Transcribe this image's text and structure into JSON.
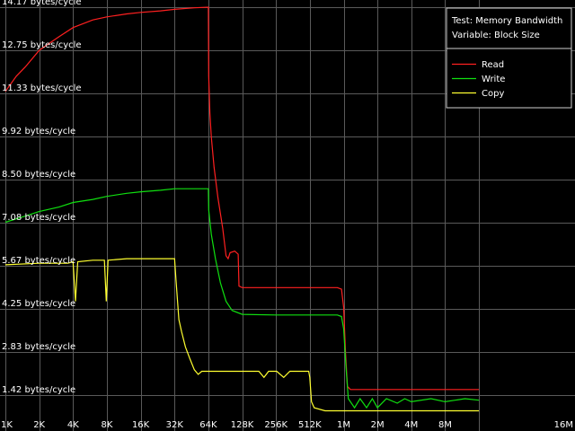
{
  "chart_data": {
    "type": "line",
    "title": "",
    "info": {
      "test_label": "Test: Memory Bandwidth",
      "variable_label": "Variable: Block Size"
    },
    "x_ticks": [
      "1K",
      "2K",
      "4K",
      "8K",
      "16K",
      "32K",
      "64K",
      "128K",
      "256K",
      "512K",
      "1M",
      "2M",
      "4M",
      "8M",
      "16M"
    ],
    "x_scale": "log2",
    "y_ticks": [
      "14.17 bytes/cycle",
      "12.75 bytes/cycle",
      "11.33 bytes/cycle",
      "9.92 bytes/cycle",
      "8.50 bytes/cycle",
      "7.08 bytes/cycle",
      "5.67 bytes/cycle",
      "4.25 bytes/cycle",
      "2.83 bytes/cycle",
      "1.42 bytes/cycle"
    ],
    "ylim": [
      0,
      14.17
    ],
    "grid": true,
    "legend_placement": "top-right",
    "colors": {
      "background": "#000000",
      "grid": "#5a5a5a",
      "text": "#ffffff"
    },
    "series": [
      {
        "name": "Read",
        "color": "#ff2020",
        "points": [
          [
            "1K",
            11.4
          ],
          [
            "1.25K",
            11.9
          ],
          [
            "1.5K",
            12.2
          ],
          [
            "2K",
            12.75
          ],
          [
            "2.5K",
            13.0
          ],
          [
            "3K",
            13.2
          ],
          [
            "4K",
            13.5
          ],
          [
            "6K",
            13.75
          ],
          [
            "8K",
            13.85
          ],
          [
            "12K",
            13.95
          ],
          [
            "16K",
            14.0
          ],
          [
            "24K",
            14.05
          ],
          [
            "32K",
            14.1
          ],
          [
            "48K",
            14.15
          ],
          [
            "64K",
            14.17
          ],
          [
            "64.5K",
            11.9
          ],
          [
            "66K",
            10.7
          ],
          [
            "68K",
            9.9
          ],
          [
            "72K",
            8.9
          ],
          [
            "78K",
            7.9
          ],
          [
            "86K",
            6.9
          ],
          [
            "92K",
            6.0
          ],
          [
            "96K",
            5.9
          ],
          [
            "100K",
            6.1
          ],
          [
            "110K",
            6.15
          ],
          [
            "118K",
            6.05
          ],
          [
            "120K",
            5.0
          ],
          [
            "128K",
            4.95
          ],
          [
            "256K",
            4.95
          ],
          [
            "512K",
            4.95
          ],
          [
            "900K",
            4.95
          ],
          [
            "980K",
            4.9
          ],
          [
            "1M",
            4.3
          ],
          [
            "1.04M",
            2.8
          ],
          [
            "1.08M",
            1.7
          ],
          [
            "1.15M",
            1.6
          ],
          [
            "2M",
            1.6
          ],
          [
            "4M",
            1.6
          ],
          [
            "8M",
            1.6
          ],
          [
            "16M",
            1.6
          ]
        ]
      },
      {
        "name": "Write",
        "color": "#10e010",
        "points": [
          [
            "1K",
            7.1
          ],
          [
            "1.5K",
            7.3
          ],
          [
            "2K",
            7.45
          ],
          [
            "3K",
            7.6
          ],
          [
            "4K",
            7.75
          ],
          [
            "6K",
            7.85
          ],
          [
            "8K",
            7.95
          ],
          [
            "12K",
            8.05
          ],
          [
            "16K",
            8.1
          ],
          [
            "24K",
            8.15
          ],
          [
            "32K",
            8.2
          ],
          [
            "48K",
            8.2
          ],
          [
            "64K",
            8.2
          ],
          [
            "64.5K",
            7.5
          ],
          [
            "68K",
            6.7
          ],
          [
            "74K",
            5.9
          ],
          [
            "82K",
            5.1
          ],
          [
            "92K",
            4.5
          ],
          [
            "104K",
            4.2
          ],
          [
            "128K",
            4.07
          ],
          [
            "256K",
            4.05
          ],
          [
            "512K",
            4.05
          ],
          [
            "900K",
            4.05
          ],
          [
            "980K",
            4.0
          ],
          [
            "1M",
            3.6
          ],
          [
            "1.05M",
            2.3
          ],
          [
            "1.1M",
            1.3
          ],
          [
            "1.25M",
            1.0
          ],
          [
            "1.4M",
            1.3
          ],
          [
            "1.6M",
            1.0
          ],
          [
            "1.8M",
            1.3
          ],
          [
            "2M",
            1.0
          ],
          [
            "2.4M",
            1.3
          ],
          [
            "3M",
            1.15
          ],
          [
            "3.5M",
            1.3
          ],
          [
            "4M",
            1.2
          ],
          [
            "6M",
            1.3
          ],
          [
            "8M",
            1.2
          ],
          [
            "12M",
            1.3
          ],
          [
            "16M",
            1.25
          ]
        ]
      },
      {
        "name": "Copy",
        "color": "#ffff30",
        "points": [
          [
            "1K",
            5.7
          ],
          [
            "2K",
            5.75
          ],
          [
            "3.6K",
            5.75
          ],
          [
            "4K",
            5.8
          ],
          [
            "4.2K",
            4.5
          ],
          [
            "4.4K",
            5.8
          ],
          [
            "6K",
            5.85
          ],
          [
            "7.6K",
            5.85
          ],
          [
            "7.9K",
            4.5
          ],
          [
            "8.2K",
            5.85
          ],
          [
            "12K",
            5.9
          ],
          [
            "16K",
            5.9
          ],
          [
            "24K",
            5.9
          ],
          [
            "32K",
            5.9
          ],
          [
            "33K",
            5.2
          ],
          [
            "35K",
            3.9
          ],
          [
            "37K",
            3.5
          ],
          [
            "40K",
            3.0
          ],
          [
            "44K",
            2.6
          ],
          [
            "48K",
            2.25
          ],
          [
            "52K",
            2.1
          ],
          [
            "56K",
            2.2
          ],
          [
            "64K",
            2.2
          ],
          [
            "96K",
            2.2
          ],
          [
            "128K",
            2.2
          ],
          [
            "180K",
            2.2
          ],
          [
            "200K",
            2.0
          ],
          [
            "220K",
            2.2
          ],
          [
            "260K",
            2.2
          ],
          [
            "300K",
            2.0
          ],
          [
            "340K",
            2.2
          ],
          [
            "400K",
            2.2
          ],
          [
            "500K",
            2.2
          ],
          [
            "512K",
            2.0
          ],
          [
            "530K",
            1.2
          ],
          [
            "560K",
            1.0
          ],
          [
            "700K",
            0.9
          ],
          [
            "1M",
            0.9
          ],
          [
            "2M",
            0.9
          ],
          [
            "4M",
            0.9
          ],
          [
            "8M",
            0.9
          ],
          [
            "16M",
            0.9
          ]
        ]
      }
    ]
  }
}
